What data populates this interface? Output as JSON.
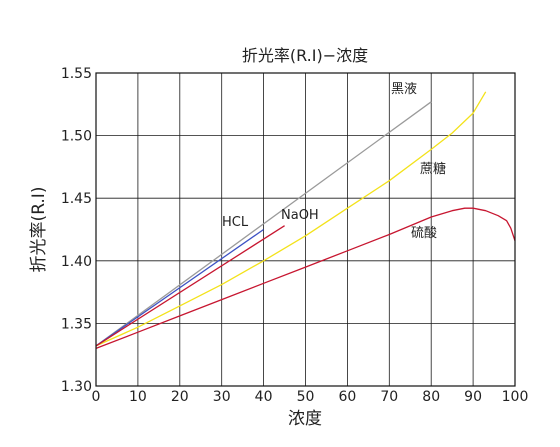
{
  "chart_data": {
    "type": "line",
    "title": "折光率(R.I)−浓度",
    "xlabel": "浓度",
    "ylabel": "折光率(R.I)",
    "xlim": [
      0,
      100
    ],
    "ylim": [
      1.3,
      1.55
    ],
    "xticks": [
      "0",
      "10",
      "20",
      "30",
      "40",
      "50",
      "60",
      "70",
      "80",
      "90",
      "100"
    ],
    "yticks": [
      "1.30",
      "1.35",
      "1.40",
      "1.45",
      "1.50",
      "1.55"
    ],
    "grid": true,
    "legend": "none",
    "series": [
      {
        "name": "黑液",
        "color": "#9a9a9a",
        "x": [
          0,
          80
        ],
        "y": [
          1.332,
          1.527
        ]
      },
      {
        "name": "蔗糖",
        "color": "#f3e21a",
        "x": [
          0,
          10,
          20,
          30,
          40,
          50,
          60,
          70,
          80,
          85,
          90,
          93
        ],
        "y": [
          1.332,
          1.347,
          1.364,
          1.381,
          1.4,
          1.42,
          1.442,
          1.464,
          1.489,
          1.502,
          1.518,
          1.535
        ]
      },
      {
        "name": "HCL",
        "color": "#3d52c4",
        "x": [
          0,
          40
        ],
        "y": [
          1.332,
          1.425
        ]
      },
      {
        "name": "NaOH",
        "color": "#c71630",
        "x": [
          0,
          45
        ],
        "y": [
          1.332,
          1.428
        ]
      },
      {
        "name": "硫酸",
        "color": "#c71630",
        "x": [
          0,
          10,
          20,
          30,
          40,
          50,
          60,
          70,
          80,
          85,
          88,
          90,
          93,
          96,
          98,
          99,
          100
        ],
        "y": [
          1.33,
          1.343,
          1.356,
          1.369,
          1.382,
          1.395,
          1.408,
          1.421,
          1.435,
          1.44,
          1.442,
          1.442,
          1.44,
          1.436,
          1.432,
          1.426,
          1.416
        ]
      }
    ]
  }
}
